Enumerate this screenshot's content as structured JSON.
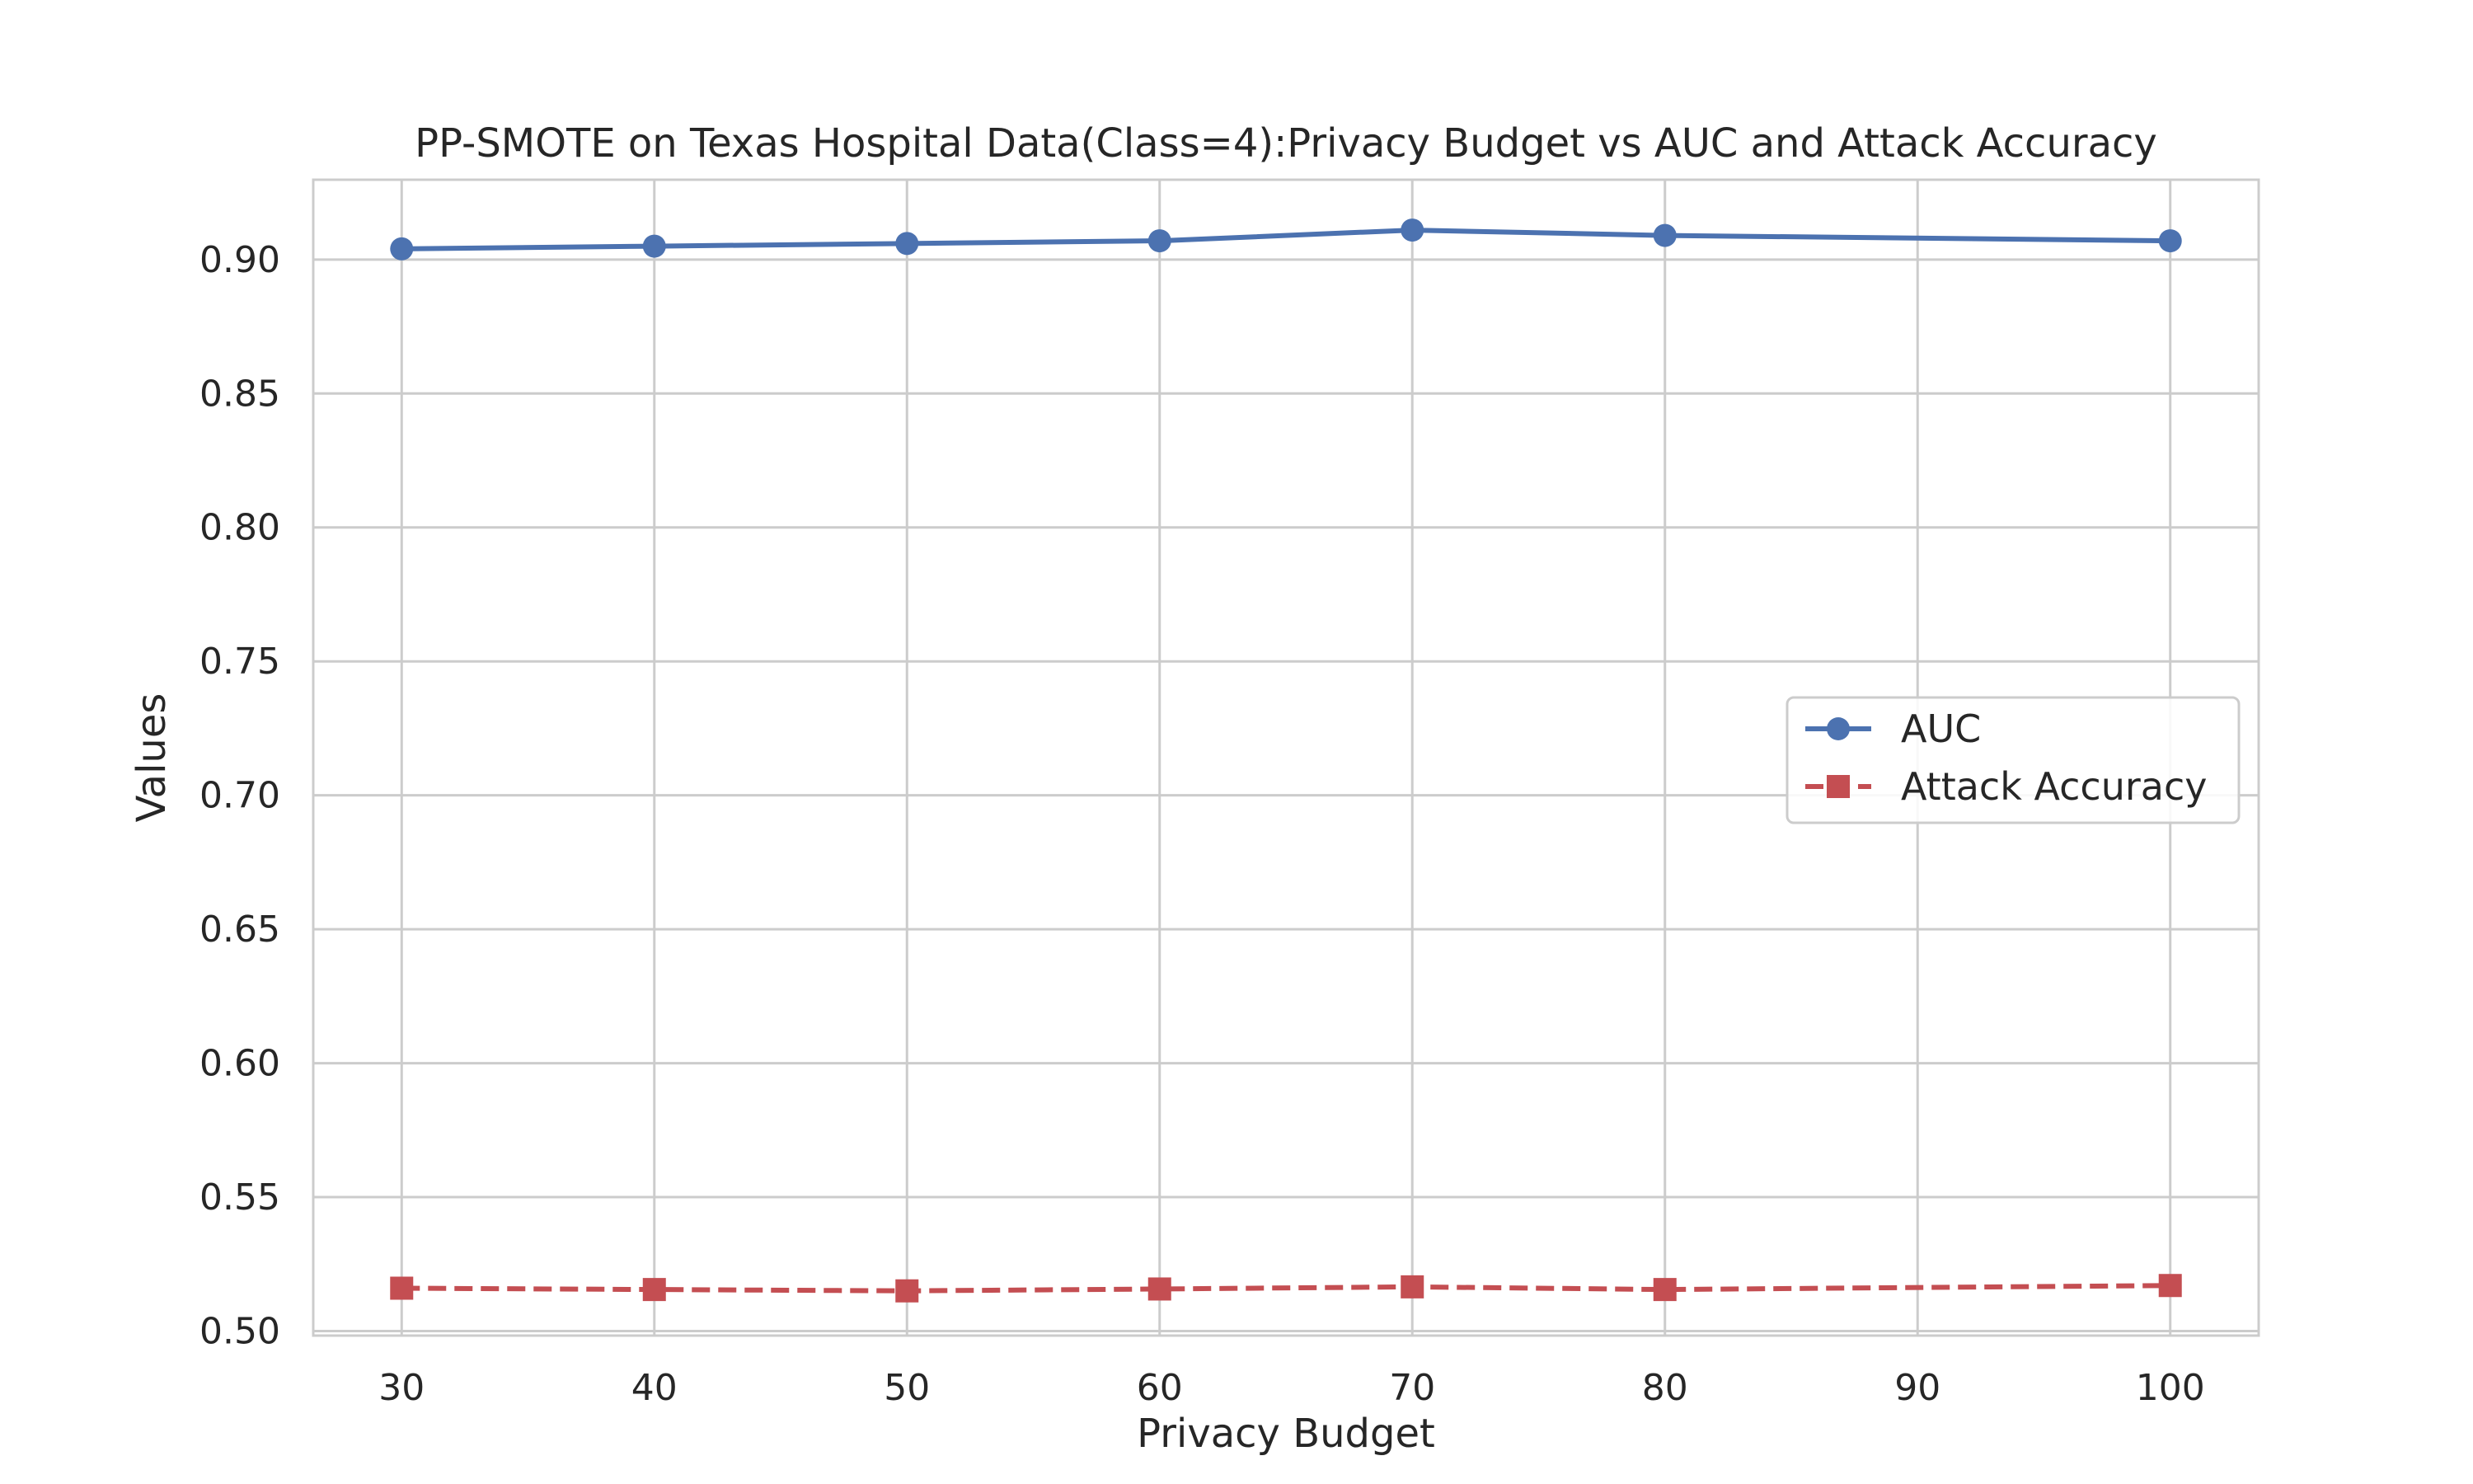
{
  "chart_data": {
    "type": "line",
    "title": "PP-SMOTE on Texas Hospital Data(Class=4):Privacy Budget vs AUC and Attack Accuracy",
    "xlabel": "Privacy Budget",
    "ylabel": "Values",
    "x": [
      30,
      40,
      50,
      60,
      70,
      80,
      100
    ],
    "xticks": [
      30,
      40,
      50,
      60,
      70,
      80,
      90,
      100
    ],
    "yticks": [
      0.5,
      0.55,
      0.6,
      0.65,
      0.7,
      0.75,
      0.8,
      0.85,
      0.9
    ],
    "xlim": [
      26.5,
      103.5
    ],
    "ylim": [
      0.4983,
      0.9298
    ],
    "grid": true,
    "legend_position": "center-right",
    "series": [
      {
        "name": "AUC",
        "color": "#4c72b0",
        "marker": "circle",
        "line": "solid",
        "values": [
          0.904,
          0.905,
          0.906,
          0.907,
          0.911,
          0.909,
          0.907
        ]
      },
      {
        "name": "Attack Accuracy",
        "color": "#c44e52",
        "marker": "square",
        "line": "dashed",
        "values": [
          0.516,
          0.5155,
          0.515,
          0.5157,
          0.5165,
          0.5155,
          0.517
        ]
      }
    ]
  }
}
